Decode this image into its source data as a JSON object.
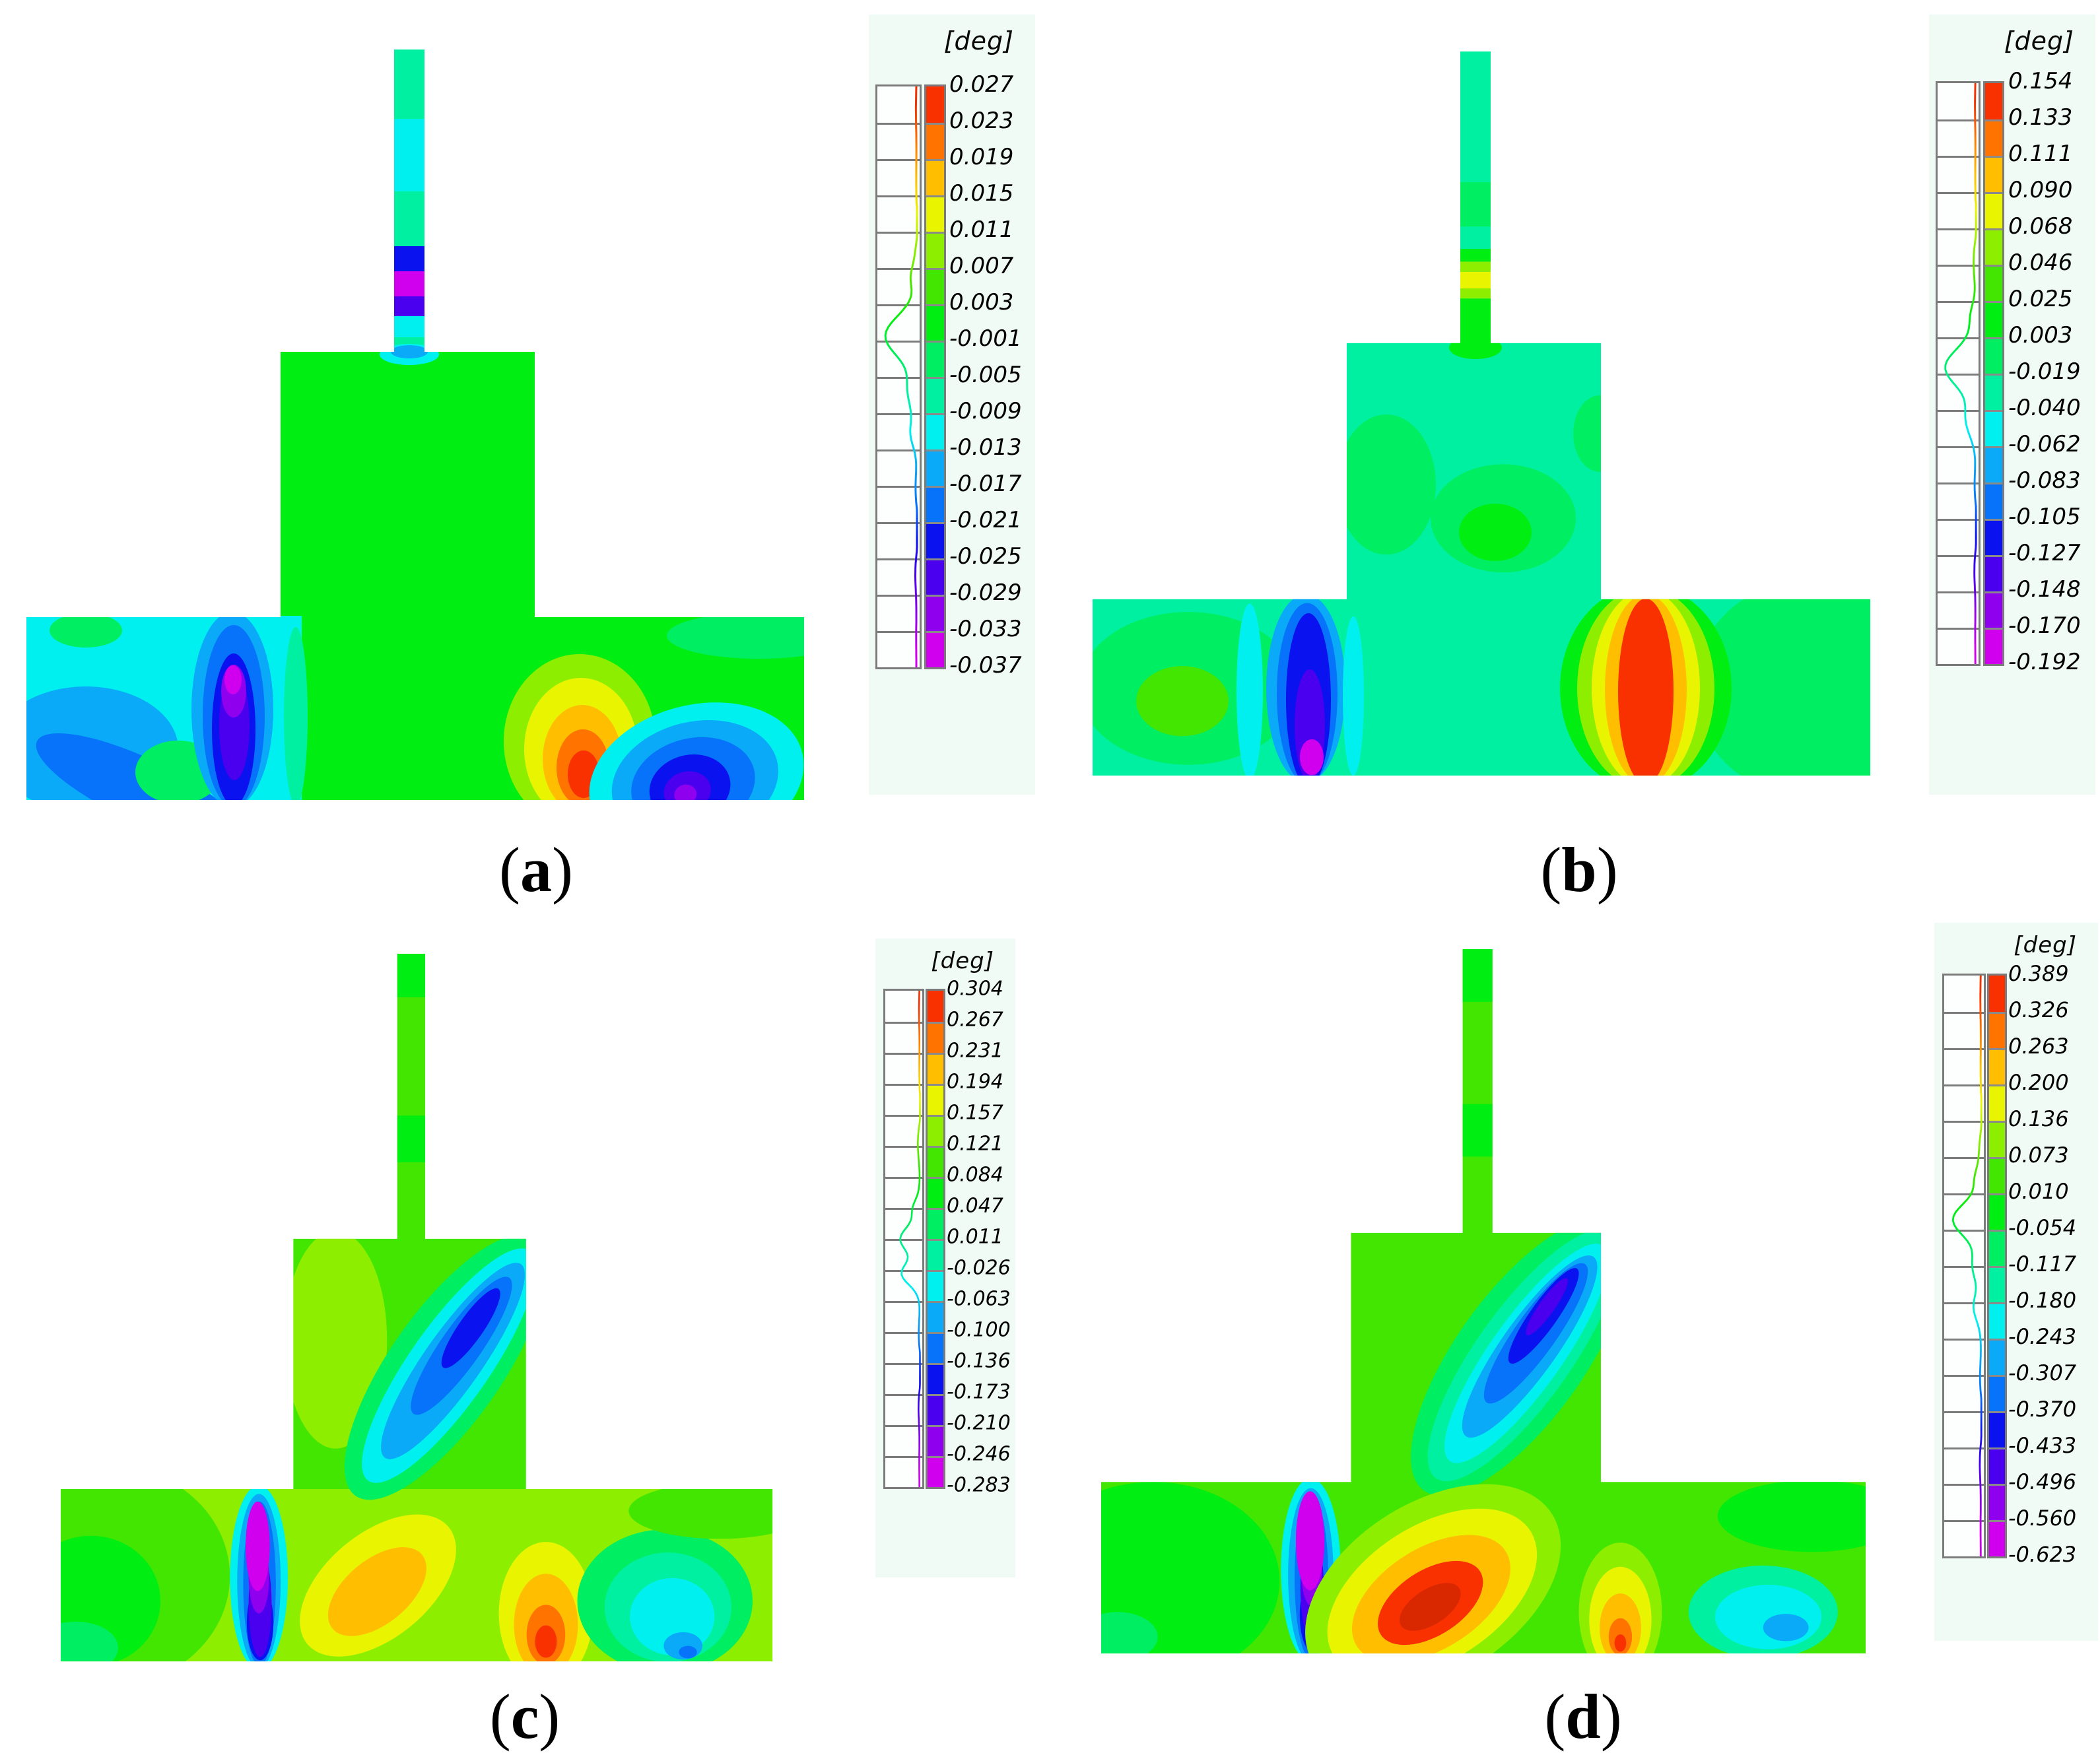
{
  "figure": {
    "background": "#ffffff",
    "legend_background": "#effbf4",
    "colormap": [
      "#f93000",
      "#ff7400",
      "#ffbe00",
      "#e9f500",
      "#8dee00",
      "#43e600",
      "#00ee12",
      "#00ee62",
      "#00f0a2",
      "#00f0f0",
      "#0aaaf8",
      "#0673fa",
      "#0b12f0",
      "#4a00ee",
      "#8e00ee",
      "#d000ee"
    ],
    "extra_colors": {
      "red_core": "#d92700",
      "histogram_box": "#fdfffe",
      "legend_border": "#7b7b7b"
    },
    "panels": [
      {
        "id": "a",
        "caption": {
          "open": "(",
          "letter": "a",
          "close": ")"
        },
        "legend": {
          "title": "[deg]",
          "values": [
            "0.027",
            "0.023",
            "0.019",
            "0.015",
            "0.011",
            "0.007",
            "0.003",
            "-0.001",
            "-0.005",
            "-0.009",
            "-0.013",
            "-0.017",
            "-0.021",
            "-0.025",
            "-0.029",
            "-0.033",
            "-0.037"
          ]
        }
      },
      {
        "id": "b",
        "caption": {
          "open": "(",
          "letter": "b",
          "close": ")"
        },
        "legend": {
          "title": "[deg]",
          "values": [
            "0.154",
            "0.133",
            "0.111",
            "0.090",
            "0.068",
            "0.046",
            "0.025",
            "0.003",
            "-0.019",
            "-0.040",
            "-0.062",
            "-0.083",
            "-0.105",
            "-0.127",
            "-0.148",
            "-0.170",
            "-0.192"
          ]
        }
      },
      {
        "id": "c",
        "caption": {
          "open": "(",
          "letter": "c",
          "close": ")"
        },
        "legend": {
          "title": "[deg]",
          "values": [
            "0.304",
            "0.267",
            "0.231",
            "0.194",
            "0.157",
            "0.121",
            "0.084",
            "0.047",
            "0.011",
            "-0.026",
            "-0.063",
            "-0.100",
            "-0.136",
            "-0.173",
            "-0.210",
            "-0.246",
            "-0.283"
          ]
        }
      },
      {
        "id": "d",
        "caption": {
          "open": "(",
          "letter": "d",
          "close": ")"
        },
        "legend": {
          "title": "[deg]",
          "values": [
            "0.389",
            "0.326",
            "0.263",
            "0.200",
            "0.136",
            "0.073",
            "0.010",
            "-0.054",
            "-0.117",
            "-0.180",
            "-0.243",
            "-0.307",
            "-0.370",
            "-0.433",
            "-0.496",
            "-0.560",
            "-0.623"
          ]
        }
      }
    ]
  },
  "chart_data": [
    {
      "type": "heatmap",
      "panel": "(a)",
      "units": "deg",
      "contour_levels": [
        0.027,
        0.023,
        0.019,
        0.015,
        0.011,
        0.007,
        0.003,
        -0.001,
        -0.005,
        -0.009,
        -0.013,
        -0.017,
        -0.021,
        -0.025,
        -0.029,
        -0.033,
        -0.037
      ],
      "max": 0.027,
      "min": -0.037,
      "legend_position": "right",
      "colormap_bands": 16
    },
    {
      "type": "heatmap",
      "panel": "(b)",
      "units": "deg",
      "contour_levels": [
        0.154,
        0.133,
        0.111,
        0.09,
        0.068,
        0.046,
        0.025,
        0.003,
        -0.019,
        -0.04,
        -0.062,
        -0.083,
        -0.105,
        -0.127,
        -0.148,
        -0.17,
        -0.192
      ],
      "max": 0.154,
      "min": -0.192,
      "legend_position": "right",
      "colormap_bands": 16
    },
    {
      "type": "heatmap",
      "panel": "(c)",
      "units": "deg",
      "contour_levels": [
        0.304,
        0.267,
        0.231,
        0.194,
        0.157,
        0.121,
        0.084,
        0.047,
        0.011,
        -0.026,
        -0.063,
        -0.1,
        -0.136,
        -0.173,
        -0.21,
        -0.246,
        -0.283
      ],
      "max": 0.304,
      "min": -0.283,
      "legend_position": "right",
      "colormap_bands": 16
    },
    {
      "type": "heatmap",
      "panel": "(d)",
      "units": "deg",
      "contour_levels": [
        0.389,
        0.326,
        0.263,
        0.2,
        0.136,
        0.073,
        0.01,
        -0.054,
        -0.117,
        -0.18,
        -0.243,
        -0.307,
        -0.37,
        -0.433,
        -0.496,
        -0.56,
        -0.623
      ],
      "max": 0.389,
      "min": -0.623,
      "legend_position": "right",
      "colormap_bands": 16
    }
  ]
}
